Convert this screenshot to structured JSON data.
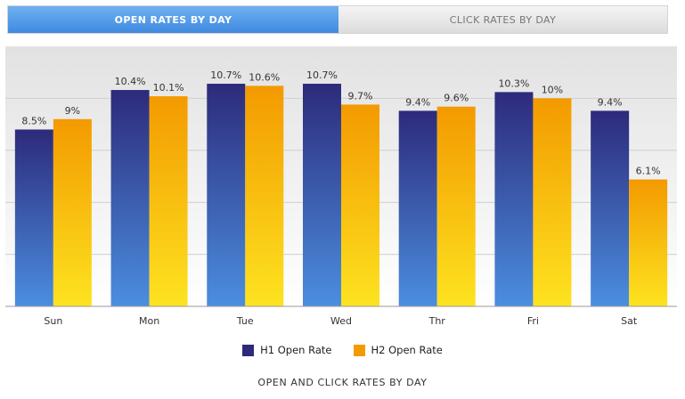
{
  "tabs": {
    "active_label": "OPEN RATES BY DAY",
    "inactive_label": "CLICK RATES BY DAY"
  },
  "caption": "OPEN AND CLICK RATES BY DAY",
  "colors": {
    "h1_top": "#2d2a7a",
    "h1_bottom": "#4b8ee0",
    "h2_top": "#f39a00",
    "h2_bottom": "#fde320",
    "gridline": "#cfcfcf",
    "axis": "#999999"
  },
  "chart_data": {
    "type": "bar",
    "title": "",
    "xlabel": "",
    "ylabel": "",
    "categories": [
      "Sun",
      "Mon",
      "Tue",
      "Wed",
      "Thr",
      "Fri",
      "Sat"
    ],
    "series": [
      {
        "name": "H1 Open Rate",
        "values": [
          8.5,
          10.4,
          10.7,
          10.7,
          9.4,
          10.3,
          9.4
        ],
        "labels": [
          "8.5%",
          "10.4%",
          "10.7%",
          "10.7%",
          "9.4%",
          "10.3%",
          "9.4%"
        ]
      },
      {
        "name": "H2 Open Rate",
        "values": [
          9,
          10.1,
          10.6,
          9.7,
          9.6,
          10,
          6.1
        ],
        "labels": [
          "9%",
          "10.1%",
          "10.6%",
          "9.7%",
          "9.6%",
          "10%",
          "6.1%"
        ]
      }
    ],
    "ylim": [
      0,
      12.5
    ],
    "grid": true,
    "legend_position": "bottom-center"
  }
}
